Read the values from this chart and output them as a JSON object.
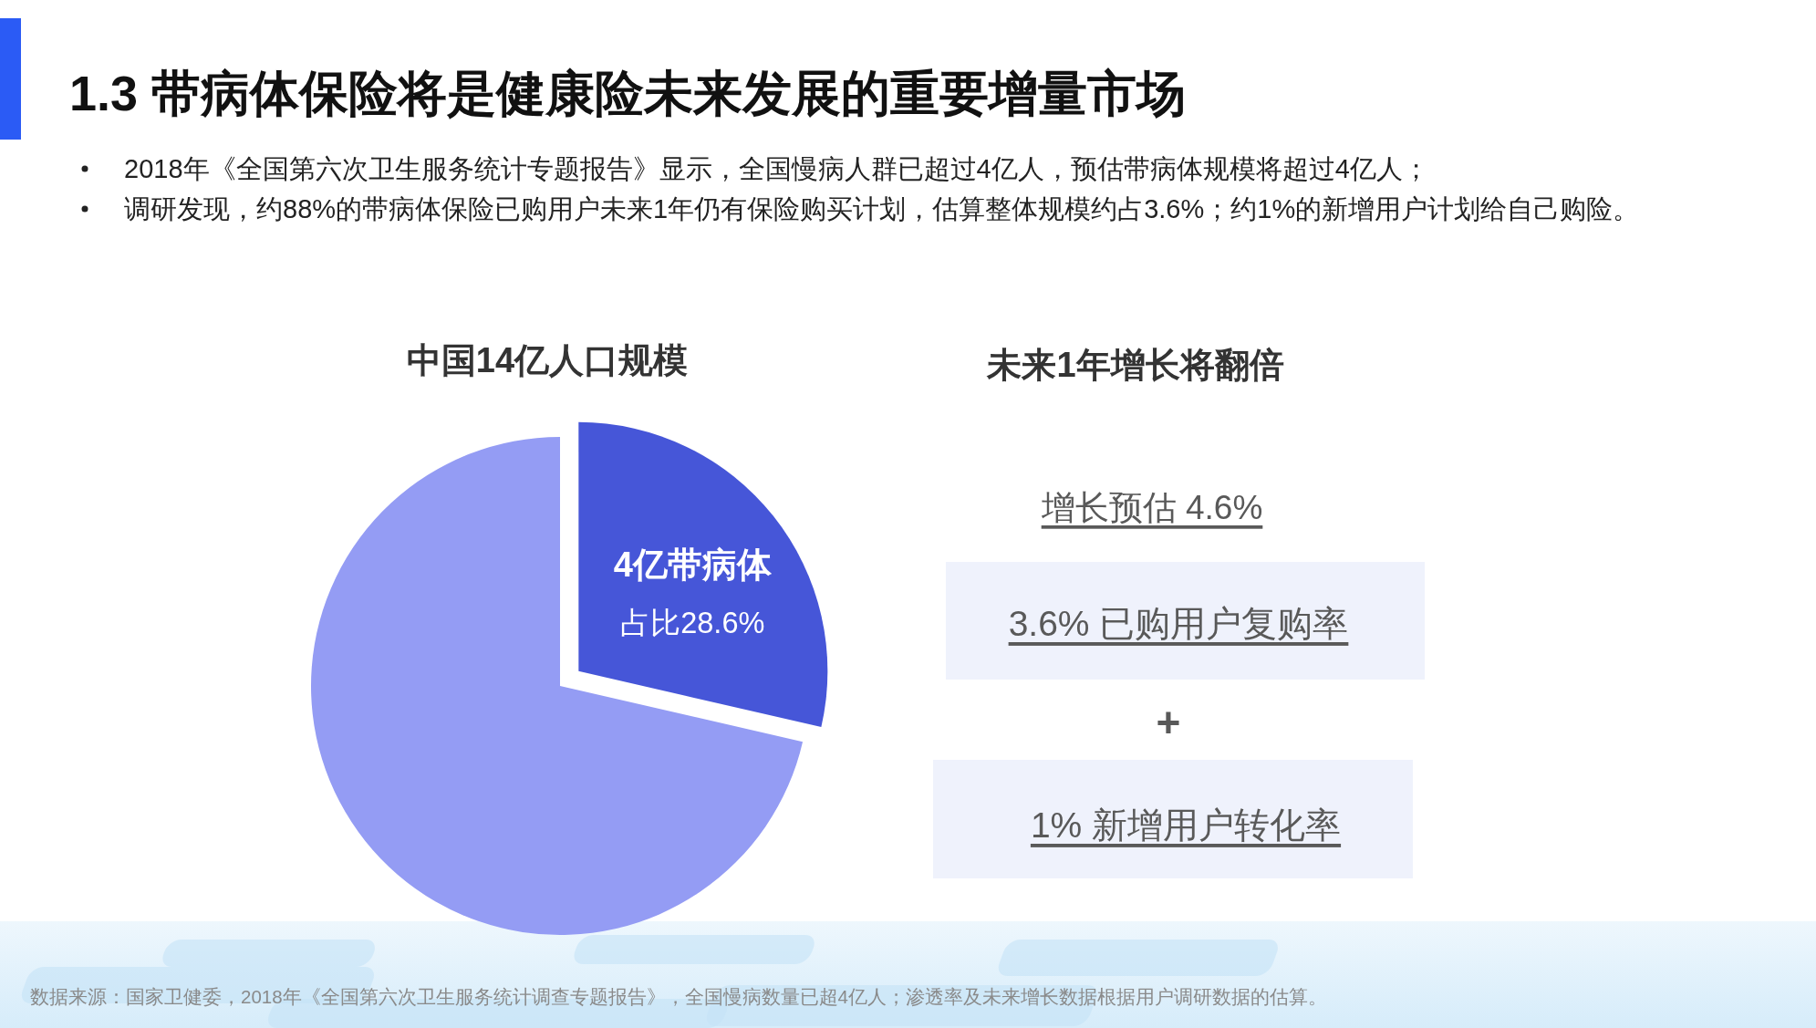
{
  "chart_data": [
    {
      "type": "pie",
      "title": "1.3 带病体保险将是健康险未来发展的重要增量市场",
      "subtitle": "中国14亿人口规模",
      "categories": [
        "4亿带病体",
        null
      ],
      "values": [
        28.6,
        71.4
      ],
      "colors": [
        "#4656d8",
        "#949cf4"
      ],
      "value_labels": [
        "占比28.6%",
        null
      ],
      "annotations": [
        "2018年《全国第六次卫生服务统计专题报告》显示，全国慢病人群已超过4亿人，预估带病体规模将超过4亿人；",
        "调研发现，约88%的带病体保险已购用户未来1年仍有保险购买计划，估算整体规模约占3.6%；约1%的新增用户计划给自己购险。",
        "数据来源：国家卫健委，2018年《全国第六次卫生服务统计调查专题报告》，全国慢病数量已超4亿人；渗透率及未来增长数据根据用户调研数据的估算。"
      ]
    },
    {
      "type": "other",
      "title": "未来1年增长将翻倍",
      "annotations": [
        "增长预估 4.6%",
        "3.6% 已购用户复购率",
        "+",
        "1% 新增用户转化率"
      ]
    }
  ]
}
